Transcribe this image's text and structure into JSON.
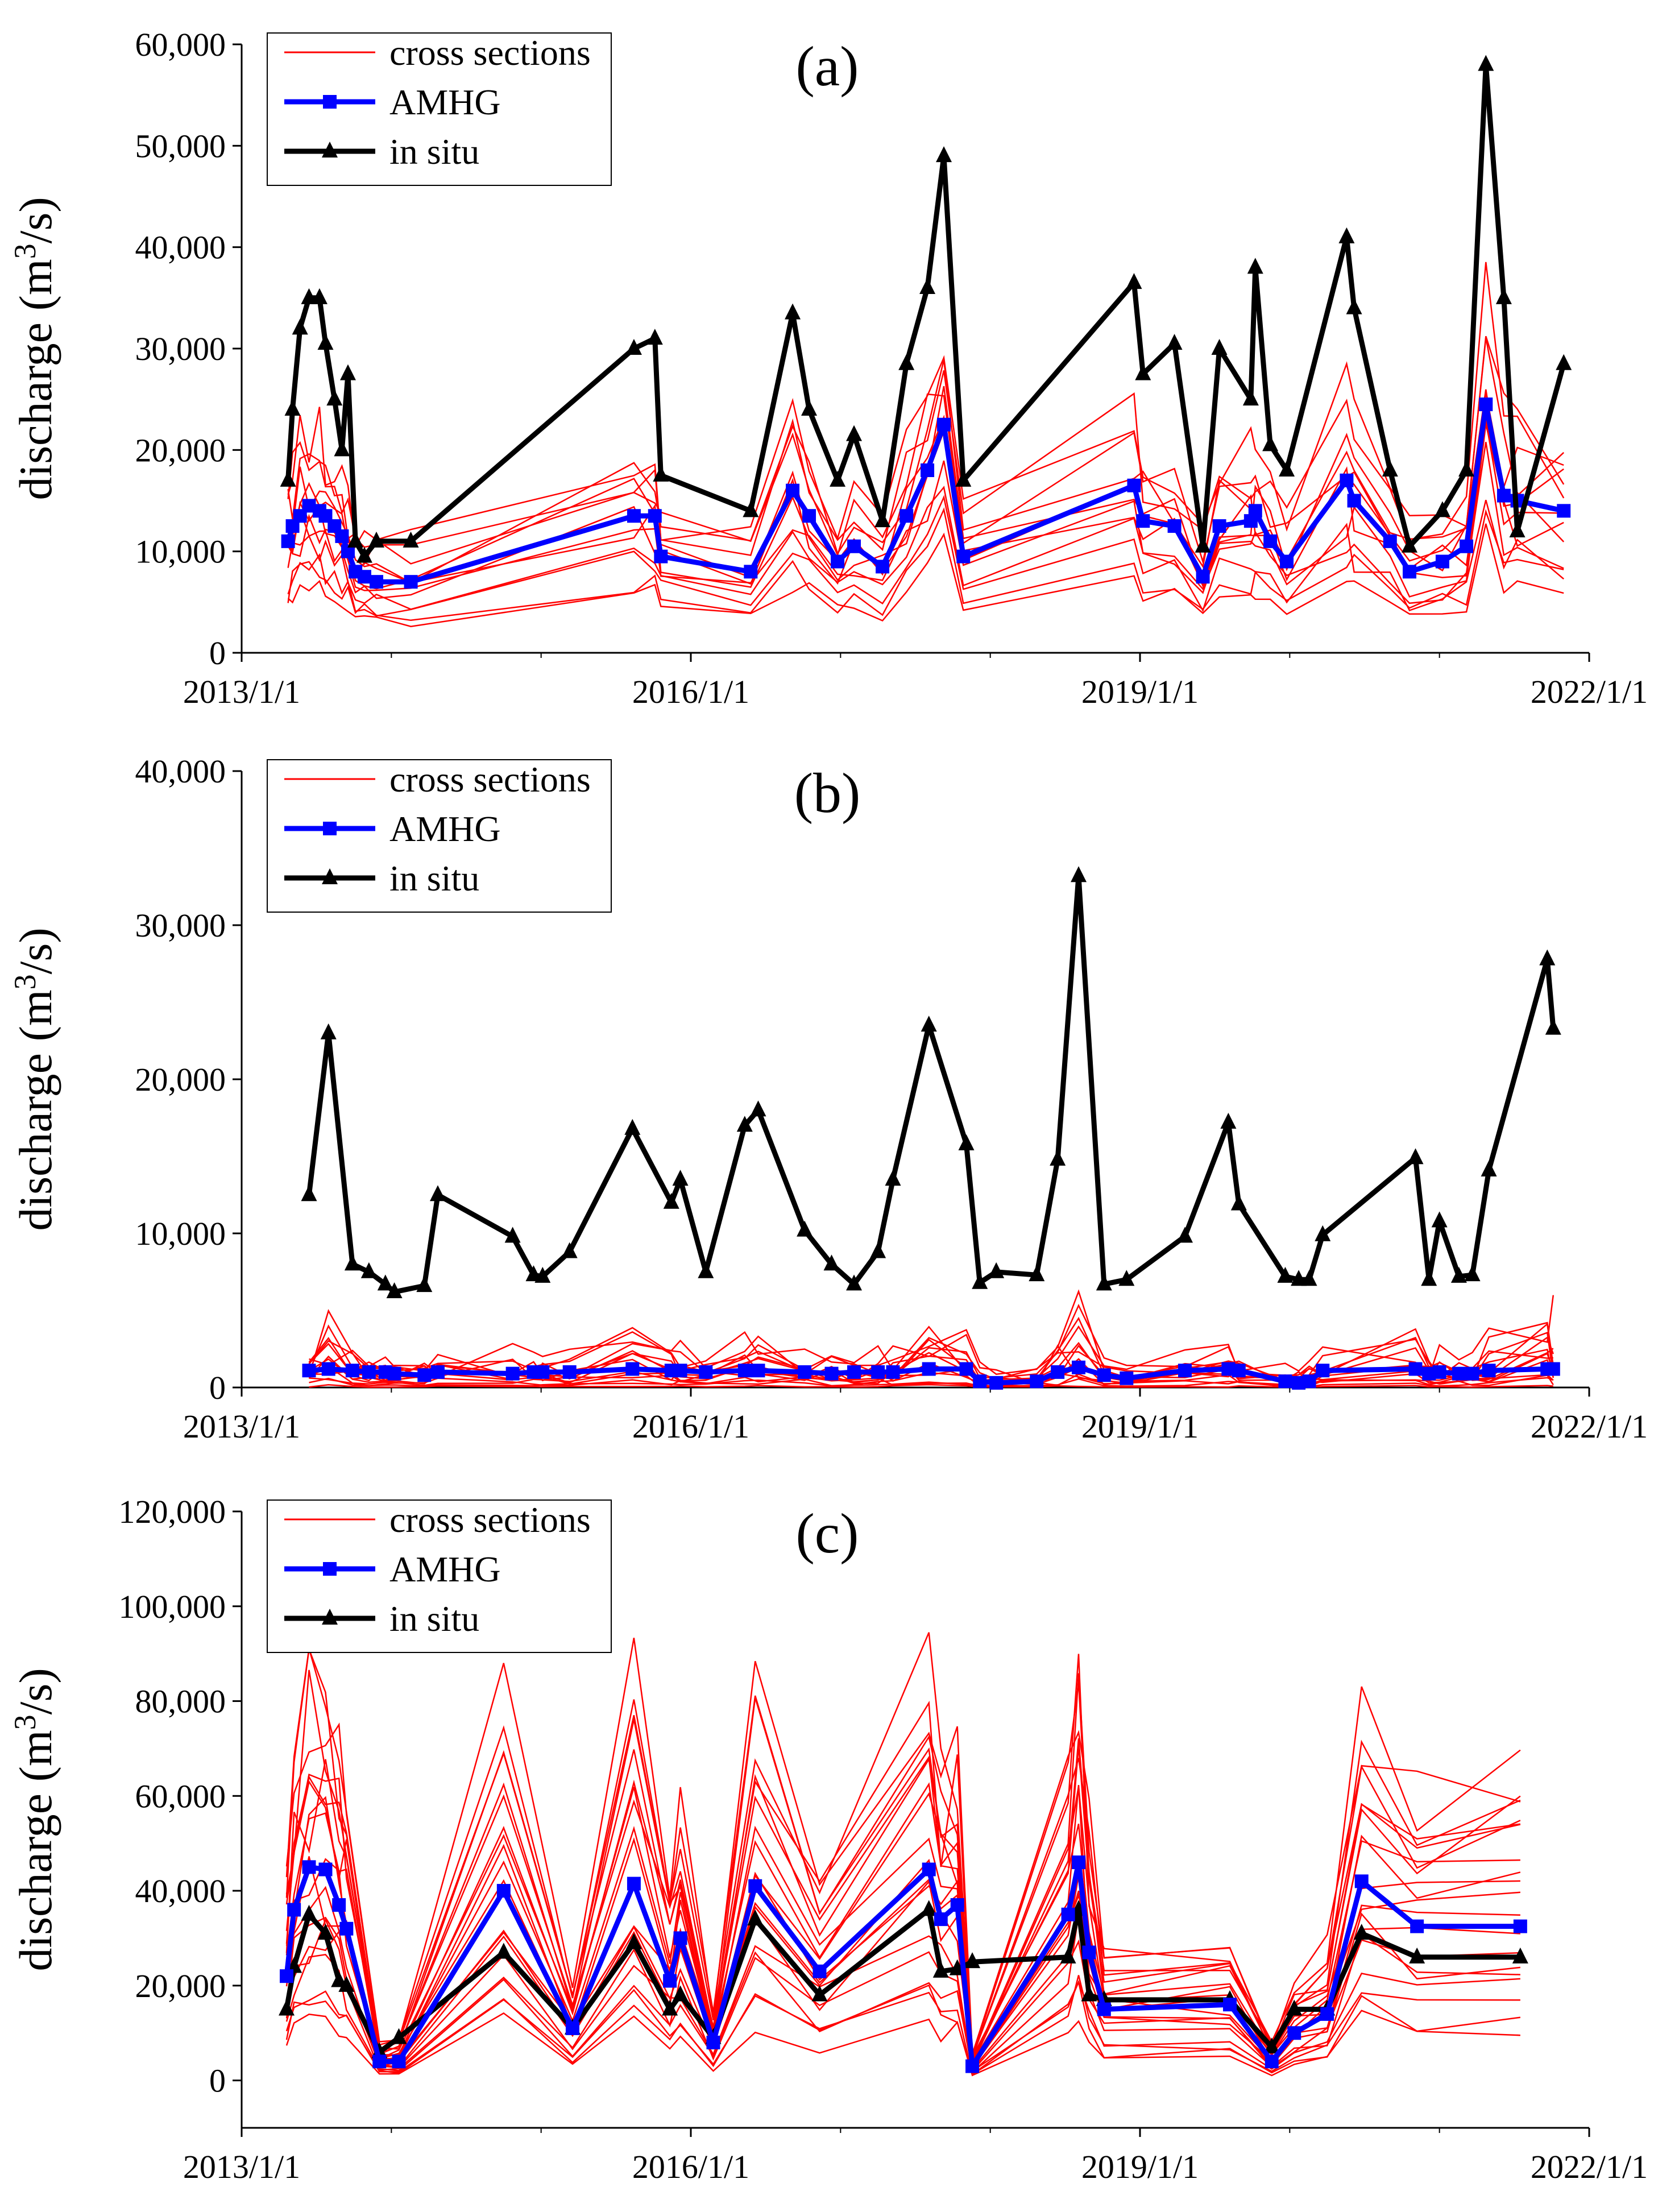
{
  "x_tick_labels": [
    "2013/1/1",
    "2016/1/1",
    "2019/1/1",
    "2022/1/1"
  ],
  "colors": {
    "cross_sections": "#ff0000",
    "amhg": "#0000ff",
    "in_situ": "#000000"
  },
  "legend": {
    "cross_sections": "cross sections",
    "amhg": "AMHG",
    "in_situ": "in situ"
  },
  "chart_data": [
    {
      "type": "line",
      "panel_label": "(a)",
      "ylabel": "discharge (m³/s)",
      "ylim": [
        0,
        60000
      ],
      "yticks": [
        0,
        10000,
        20000,
        30000,
        40000,
        50000,
        60000
      ],
      "ytick_labels": [
        "0",
        "10,000",
        "20,000",
        "30,000",
        "40,000",
        "50,000",
        "60,000"
      ],
      "xlim": [
        2013.0,
        2022.0
      ],
      "legend_position": "top-left",
      "series": [
        {
          "name": "in situ",
          "key": "in_situ",
          "marker": "triangle",
          "x": [
            2013.31,
            2013.34,
            2013.39,
            2013.45,
            2013.52,
            2013.56,
            2013.62,
            2013.67,
            2013.71,
            2013.76,
            2013.82,
            2013.9,
            2014.13,
            2015.62,
            2015.76,
            2015.8,
            2016.4,
            2016.68,
            2016.79,
            2016.98,
            2017.09,
            2017.28,
            2017.44,
            2017.58,
            2017.69,
            2017.82,
            2018.96,
            2019.02,
            2019.23,
            2019.42,
            2019.53,
            2019.74,
            2019.77,
            2019.87,
            2019.98,
            2020.38,
            2020.43,
            2020.67,
            2020.8,
            2021.02,
            2021.18,
            2021.31,
            2021.43,
            2021.52,
            2021.83
          ],
          "y": [
            17000,
            24000,
            32000,
            35000,
            35000,
            30500,
            25000,
            20000,
            27500,
            11000,
            9500,
            11000,
            11000,
            30000,
            31000,
            17500,
            14000,
            33500,
            24000,
            17000,
            21500,
            13000,
            28500,
            36000,
            49000,
            17000,
            36500,
            27500,
            30500,
            10500,
            30000,
            25000,
            38000,
            20500,
            18000,
            41000,
            34000,
            18000,
            10500,
            14000,
            18000,
            58000,
            35000,
            12000,
            28500
          ]
        },
        {
          "name": "AMHG",
          "key": "amhg",
          "marker": "square",
          "x": [
            2013.31,
            2013.34,
            2013.39,
            2013.45,
            2013.52,
            2013.56,
            2013.62,
            2013.67,
            2013.71,
            2013.76,
            2013.82,
            2013.9,
            2014.13,
            2015.62,
            2015.76,
            2015.8,
            2016.4,
            2016.68,
            2016.79,
            2016.98,
            2017.09,
            2017.28,
            2017.44,
            2017.58,
            2017.69,
            2017.82,
            2018.96,
            2019.02,
            2019.23,
            2019.42,
            2019.53,
            2019.74,
            2019.77,
            2019.87,
            2019.98,
            2020.38,
            2020.43,
            2020.67,
            2020.8,
            2021.02,
            2021.18,
            2021.31,
            2021.43,
            2021.52,
            2021.83
          ],
          "y": [
            11000,
            12500,
            13500,
            14500,
            14000,
            13500,
            12500,
            11500,
            10000,
            8000,
            7500,
            7000,
            7000,
            13500,
            13500,
            9500,
            8000,
            16000,
            13500,
            9000,
            10500,
            8500,
            13500,
            18000,
            22500,
            9500,
            16500,
            13000,
            12500,
            7500,
            12500,
            13000,
            14000,
            11000,
            9000,
            17000,
            15000,
            11000,
            8000,
            9000,
            10500,
            24500,
            15500,
            15000,
            14000
          ]
        },
        {
          "name": "cross sections",
          "key": "cross_sections",
          "marker": "none",
          "x": [
            2013.31,
            2013.34,
            2013.39,
            2013.45,
            2013.52,
            2013.56,
            2013.62,
            2013.67,
            2013.71,
            2013.76,
            2013.82,
            2013.9,
            2014.13,
            2015.62,
            2015.76,
            2015.8,
            2016.4,
            2016.68,
            2016.79,
            2016.98,
            2017.09,
            2017.28,
            2017.44,
            2017.58,
            2017.69,
            2017.82,
            2018.96,
            2019.02,
            2019.23,
            2019.42,
            2019.53,
            2019.74,
            2019.77,
            2019.87,
            2019.98,
            2020.38,
            2020.43,
            2020.67,
            2020.8,
            2021.02,
            2021.18,
            2021.31,
            2021.43,
            2021.52,
            2021.83
          ],
          "ensemble": {
            "count": 12,
            "min_factor": 0.45,
            "max_factor": 1.45
          }
        }
      ]
    },
    {
      "type": "line",
      "panel_label": "(b)",
      "ylabel": "discharge (m³/s)",
      "ylim": [
        0,
        40000
      ],
      "yticks": [
        0,
        10000,
        20000,
        30000,
        40000
      ],
      "ytick_labels": [
        "0",
        "10,000",
        "20,000",
        "30,000",
        "40,000"
      ],
      "xlim": [
        2013.0,
        2022.0
      ],
      "legend_position": "top-left",
      "series": [
        {
          "name": "in situ",
          "key": "in_situ",
          "marker": "triangle",
          "x": [
            2013.45,
            2013.58,
            2013.74,
            2013.85,
            2013.96,
            2014.02,
            2014.22,
            2014.31,
            2014.81,
            2014.95,
            2015.01,
            2015.19,
            2015.61,
            2015.87,
            2015.93,
            2016.1,
            2016.36,
            2016.45,
            2016.76,
            2016.94,
            2017.09,
            2017.25,
            2017.35,
            2017.59,
            2017.84,
            2017.93,
            2018.04,
            2018.31,
            2018.45,
            2018.59,
            2018.76,
            2018.91,
            2019.3,
            2019.59,
            2019.66,
            2019.97,
            2020.06,
            2020.13,
            2020.22,
            2020.84,
            2020.93,
            2021.0,
            2021.13,
            2021.22,
            2021.33,
            2021.72,
            2021.76
          ],
          "y": [
            12500,
            23000,
            8000,
            7500,
            6700,
            6200,
            6600,
            12500,
            9800,
            7300,
            7200,
            8800,
            16800,
            12000,
            13500,
            7500,
            17000,
            18000,
            10200,
            8000,
            6700,
            8800,
            13500,
            23500,
            15800,
            6800,
            7500,
            7300,
            14800,
            33200,
            6700,
            7000,
            9800,
            17200,
            11900,
            7200,
            7000,
            7000,
            9900,
            14900,
            7000,
            10800,
            7200,
            7300,
            14100,
            27800,
            23300
          ]
        },
        {
          "name": "AMHG",
          "key": "amhg",
          "marker": "square",
          "x": [
            2013.45,
            2013.58,
            2013.74,
            2013.85,
            2013.96,
            2014.02,
            2014.22,
            2014.31,
            2014.81,
            2014.95,
            2015.01,
            2015.19,
            2015.61,
            2015.87,
            2015.93,
            2016.1,
            2016.36,
            2016.45,
            2016.76,
            2016.94,
            2017.09,
            2017.25,
            2017.35,
            2017.59,
            2017.84,
            2017.93,
            2018.04,
            2018.31,
            2018.45,
            2018.59,
            2018.76,
            2018.91,
            2019.3,
            2019.59,
            2019.66,
            2019.97,
            2020.06,
            2020.13,
            2020.22,
            2020.84,
            2020.93,
            2021.0,
            2021.13,
            2021.22,
            2021.33,
            2021.72,
            2021.76
          ],
          "y": [
            1100,
            1200,
            1100,
            1000,
            1000,
            900,
            800,
            1000,
            900,
            1000,
            1000,
            1000,
            1200,
            1100,
            1100,
            1000,
            1100,
            1100,
            1000,
            900,
            1000,
            1000,
            1000,
            1200,
            1200,
            400,
            300,
            400,
            1000,
            1300,
            800,
            600,
            1100,
            1200,
            1100,
            400,
            300,
            400,
            1100,
            1200,
            900,
            1000,
            900,
            900,
            1100,
            1200,
            1200
          ]
        },
        {
          "name": "cross sections",
          "key": "cross_sections",
          "marker": "none",
          "x": [
            2013.45,
            2013.58,
            2013.74,
            2013.85,
            2013.96,
            2014.02,
            2014.22,
            2014.31,
            2014.81,
            2014.95,
            2015.01,
            2015.19,
            2015.61,
            2015.87,
            2015.93,
            2016.1,
            2016.36,
            2016.45,
            2016.76,
            2016.94,
            2017.09,
            2017.25,
            2017.35,
            2017.59,
            2017.84,
            2017.93,
            2018.04,
            2018.31,
            2018.45,
            2018.59,
            2018.76,
            2018.91,
            2019.3,
            2019.59,
            2019.66,
            2019.97,
            2020.06,
            2020.13,
            2020.22,
            2020.84,
            2020.93,
            2021.0,
            2021.13,
            2021.22,
            2021.33,
            2021.72,
            2021.76
          ],
          "ensemble": {
            "count": 14,
            "min_factor": 0.02,
            "max_factor": 0.65
          }
        }
      ]
    },
    {
      "type": "line",
      "panel_label": "(c)",
      "ylabel": "discharge (m³/s)",
      "ylim": [
        -10000,
        120000
      ],
      "yticks": [
        0,
        20000,
        40000,
        60000,
        80000,
        100000,
        120000
      ],
      "ytick_labels": [
        "0",
        "20,000",
        "40,000",
        "60,000",
        "80,000",
        "100,000",
        "120,000"
      ],
      "xlim": [
        2013.0,
        2022.0
      ],
      "legend_position": "top-left",
      "series": [
        {
          "name": "in situ",
          "key": "in_situ",
          "marker": "triangle",
          "x": [
            2013.3,
            2013.35,
            2013.45,
            2013.56,
            2013.65,
            2013.7,
            2013.92,
            2014.05,
            2014.75,
            2015.21,
            2015.62,
            2015.86,
            2015.93,
            2016.15,
            2016.43,
            2016.86,
            2017.59,
            2017.67,
            2017.78,
            2017.88,
            2018.52,
            2018.59,
            2018.66,
            2018.76,
            2019.6,
            2019.88,
            2020.03,
            2020.25,
            2020.48,
            2020.85,
            2021.54
          ],
          "y": [
            15000,
            24000,
            35000,
            31000,
            21000,
            20000,
            6000,
            9000,
            27000,
            11000,
            29000,
            15000,
            18000,
            9000,
            34000,
            18000,
            36000,
            23000,
            23500,
            25000,
            26000,
            36000,
            18000,
            17000,
            17000,
            7000,
            15000,
            15000,
            31000,
            26000,
            26000
          ]
        },
        {
          "name": "AMHG",
          "key": "amhg",
          "marker": "square",
          "x": [
            2013.3,
            2013.35,
            2013.45,
            2013.56,
            2013.65,
            2013.7,
            2013.92,
            2014.05,
            2014.75,
            2015.21,
            2015.62,
            2015.86,
            2015.93,
            2016.15,
            2016.43,
            2016.86,
            2017.59,
            2017.67,
            2017.78,
            2017.88,
            2018.52,
            2018.59,
            2018.66,
            2018.76,
            2019.6,
            2019.88,
            2020.03,
            2020.25,
            2020.48,
            2020.85,
            2021.54
          ],
          "y": [
            22000,
            36000,
            45000,
            44500,
            37000,
            32000,
            4000,
            4000,
            40000,
            11000,
            41500,
            21000,
            30000,
            8000,
            41000,
            23000,
            44500,
            34000,
            37000,
            3000,
            35000,
            46000,
            27000,
            15000,
            16000,
            4000,
            10000,
            14000,
            42000,
            32500,
            32500
          ]
        },
        {
          "name": "cross sections",
          "key": "cross_sections",
          "marker": "none",
          "x": [
            2013.3,
            2013.35,
            2013.45,
            2013.56,
            2013.65,
            2013.7,
            2013.92,
            2014.05,
            2014.75,
            2015.21,
            2015.62,
            2015.86,
            2015.93,
            2016.15,
            2016.43,
            2016.86,
            2017.59,
            2017.67,
            2017.78,
            2017.88,
            2018.52,
            2018.59,
            2018.66,
            2018.76,
            2019.6,
            2019.88,
            2020.03,
            2020.25,
            2020.48,
            2020.85,
            2021.54
          ],
          "ensemble": {
            "count": 20,
            "min_factor": 0.3,
            "max_factor": 1.9
          }
        }
      ]
    }
  ]
}
